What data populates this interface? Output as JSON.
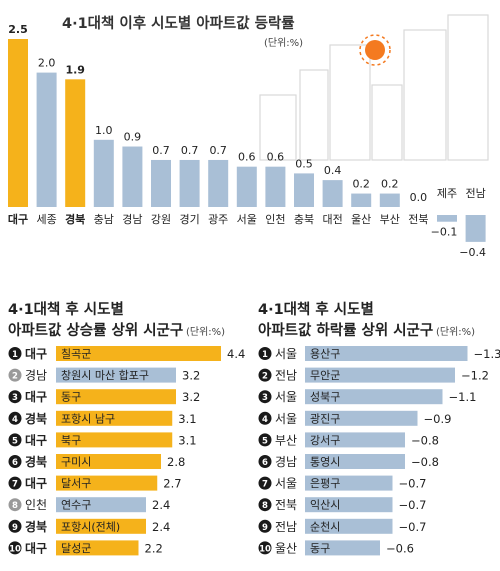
{
  "chart_data": [
    {
      "type": "bar",
      "title": "4·1대책 이후 시도별 아파트값 등락률",
      "unit": "(단위:%)",
      "categories": [
        "대구",
        "세종",
        "경북",
        "충남",
        "경남",
        "강원",
        "경기",
        "광주",
        "서울",
        "인천",
        "충북",
        "대전",
        "울산",
        "부산",
        "전북",
        "제주",
        "전남"
      ],
      "values": [
        2.5,
        2.0,
        1.9,
        1.0,
        0.9,
        0.7,
        0.7,
        0.7,
        0.6,
        0.6,
        0.5,
        0.4,
        0.2,
        0.2,
        0.0,
        -0.1,
        -0.4
      ],
      "value_labels": [
        "2.5",
        "2.0",
        "1.9",
        "1.0",
        "0.9",
        "0.7",
        "0.7",
        "0.7",
        "0.6",
        "0.6",
        "0.5",
        "0.4",
        "0.2",
        "0.2",
        "0.0",
        "−0.1",
        "−0.4"
      ],
      "highlighted": [
        "대구",
        "경북"
      ],
      "colors": {
        "highlight": "#f5b21b",
        "normal": "#a9bfd6"
      }
    },
    {
      "type": "bar",
      "orientation": "horizontal",
      "title_line1": "4·1대책 후 시도별",
      "title_line2": "아파트값 상승률 상위 시군구",
      "unit": "(단위:%)",
      "rows": [
        {
          "rank": "1",
          "region": "대구",
          "district": "칠곡군",
          "value": 4.4,
          "label": "4.4",
          "highlight": true
        },
        {
          "rank": "2",
          "region": "경남",
          "district": "창원시 마산 합포구",
          "value": 3.2,
          "label": "3.2",
          "highlight": false
        },
        {
          "rank": "3",
          "region": "대구",
          "district": "동구",
          "value": 3.2,
          "label": "3.2",
          "highlight": true
        },
        {
          "rank": "4",
          "region": "경북",
          "district": "포항시 남구",
          "value": 3.1,
          "label": "3.1",
          "highlight": true
        },
        {
          "rank": "5",
          "region": "대구",
          "district": "북구",
          "value": 3.1,
          "label": "3.1",
          "highlight": true
        },
        {
          "rank": "6",
          "region": "경북",
          "district": "구미시",
          "value": 2.8,
          "label": "2.8",
          "highlight": true
        },
        {
          "rank": "7",
          "region": "대구",
          "district": "달서구",
          "value": 2.7,
          "label": "2.7",
          "highlight": true
        },
        {
          "rank": "8",
          "region": "인천",
          "district": "연수구",
          "value": 2.4,
          "label": "2.4",
          "highlight": false
        },
        {
          "rank": "9",
          "region": "경북",
          "district": "포항시(전체)",
          "value": 2.4,
          "label": "2.4",
          "highlight": true
        },
        {
          "rank": "10",
          "region": "대구",
          "district": "달성군",
          "value": 2.2,
          "label": "2.2",
          "highlight": true
        }
      ]
    },
    {
      "type": "bar",
      "orientation": "horizontal",
      "title_line1": "4·1대책 후 시도별",
      "title_line2": "아파트값 하락률 상위 시군구",
      "unit": "(단위:%)",
      "rows": [
        {
          "rank": "1",
          "region": "서울",
          "district": "용산구",
          "value": -1.3,
          "label": "−1.3"
        },
        {
          "rank": "2",
          "region": "전남",
          "district": "무안군",
          "value": -1.2,
          "label": "−1.2"
        },
        {
          "rank": "3",
          "region": "서울",
          "district": "성북구",
          "value": -1.1,
          "label": "−1.1"
        },
        {
          "rank": "4",
          "region": "서울",
          "district": "광진구",
          "value": -0.9,
          "label": "−0.9"
        },
        {
          "rank": "5",
          "region": "부산",
          "district": "강서구",
          "value": -0.8,
          "label": "−0.8"
        },
        {
          "rank": "6",
          "region": "경남",
          "district": "통영시",
          "value": -0.8,
          "label": "−0.8"
        },
        {
          "rank": "7",
          "region": "서울",
          "district": "은평구",
          "value": -0.7,
          "label": "−0.7"
        },
        {
          "rank": "8",
          "region": "전북",
          "district": "익산시",
          "value": -0.7,
          "label": "−0.7"
        },
        {
          "rank": "9",
          "region": "전남",
          "district": "순천시",
          "value": -0.7,
          "label": "−0.7"
        },
        {
          "rank": "10",
          "region": "울산",
          "district": "동구",
          "value": -0.6,
          "label": "−0.6"
        }
      ]
    }
  ]
}
